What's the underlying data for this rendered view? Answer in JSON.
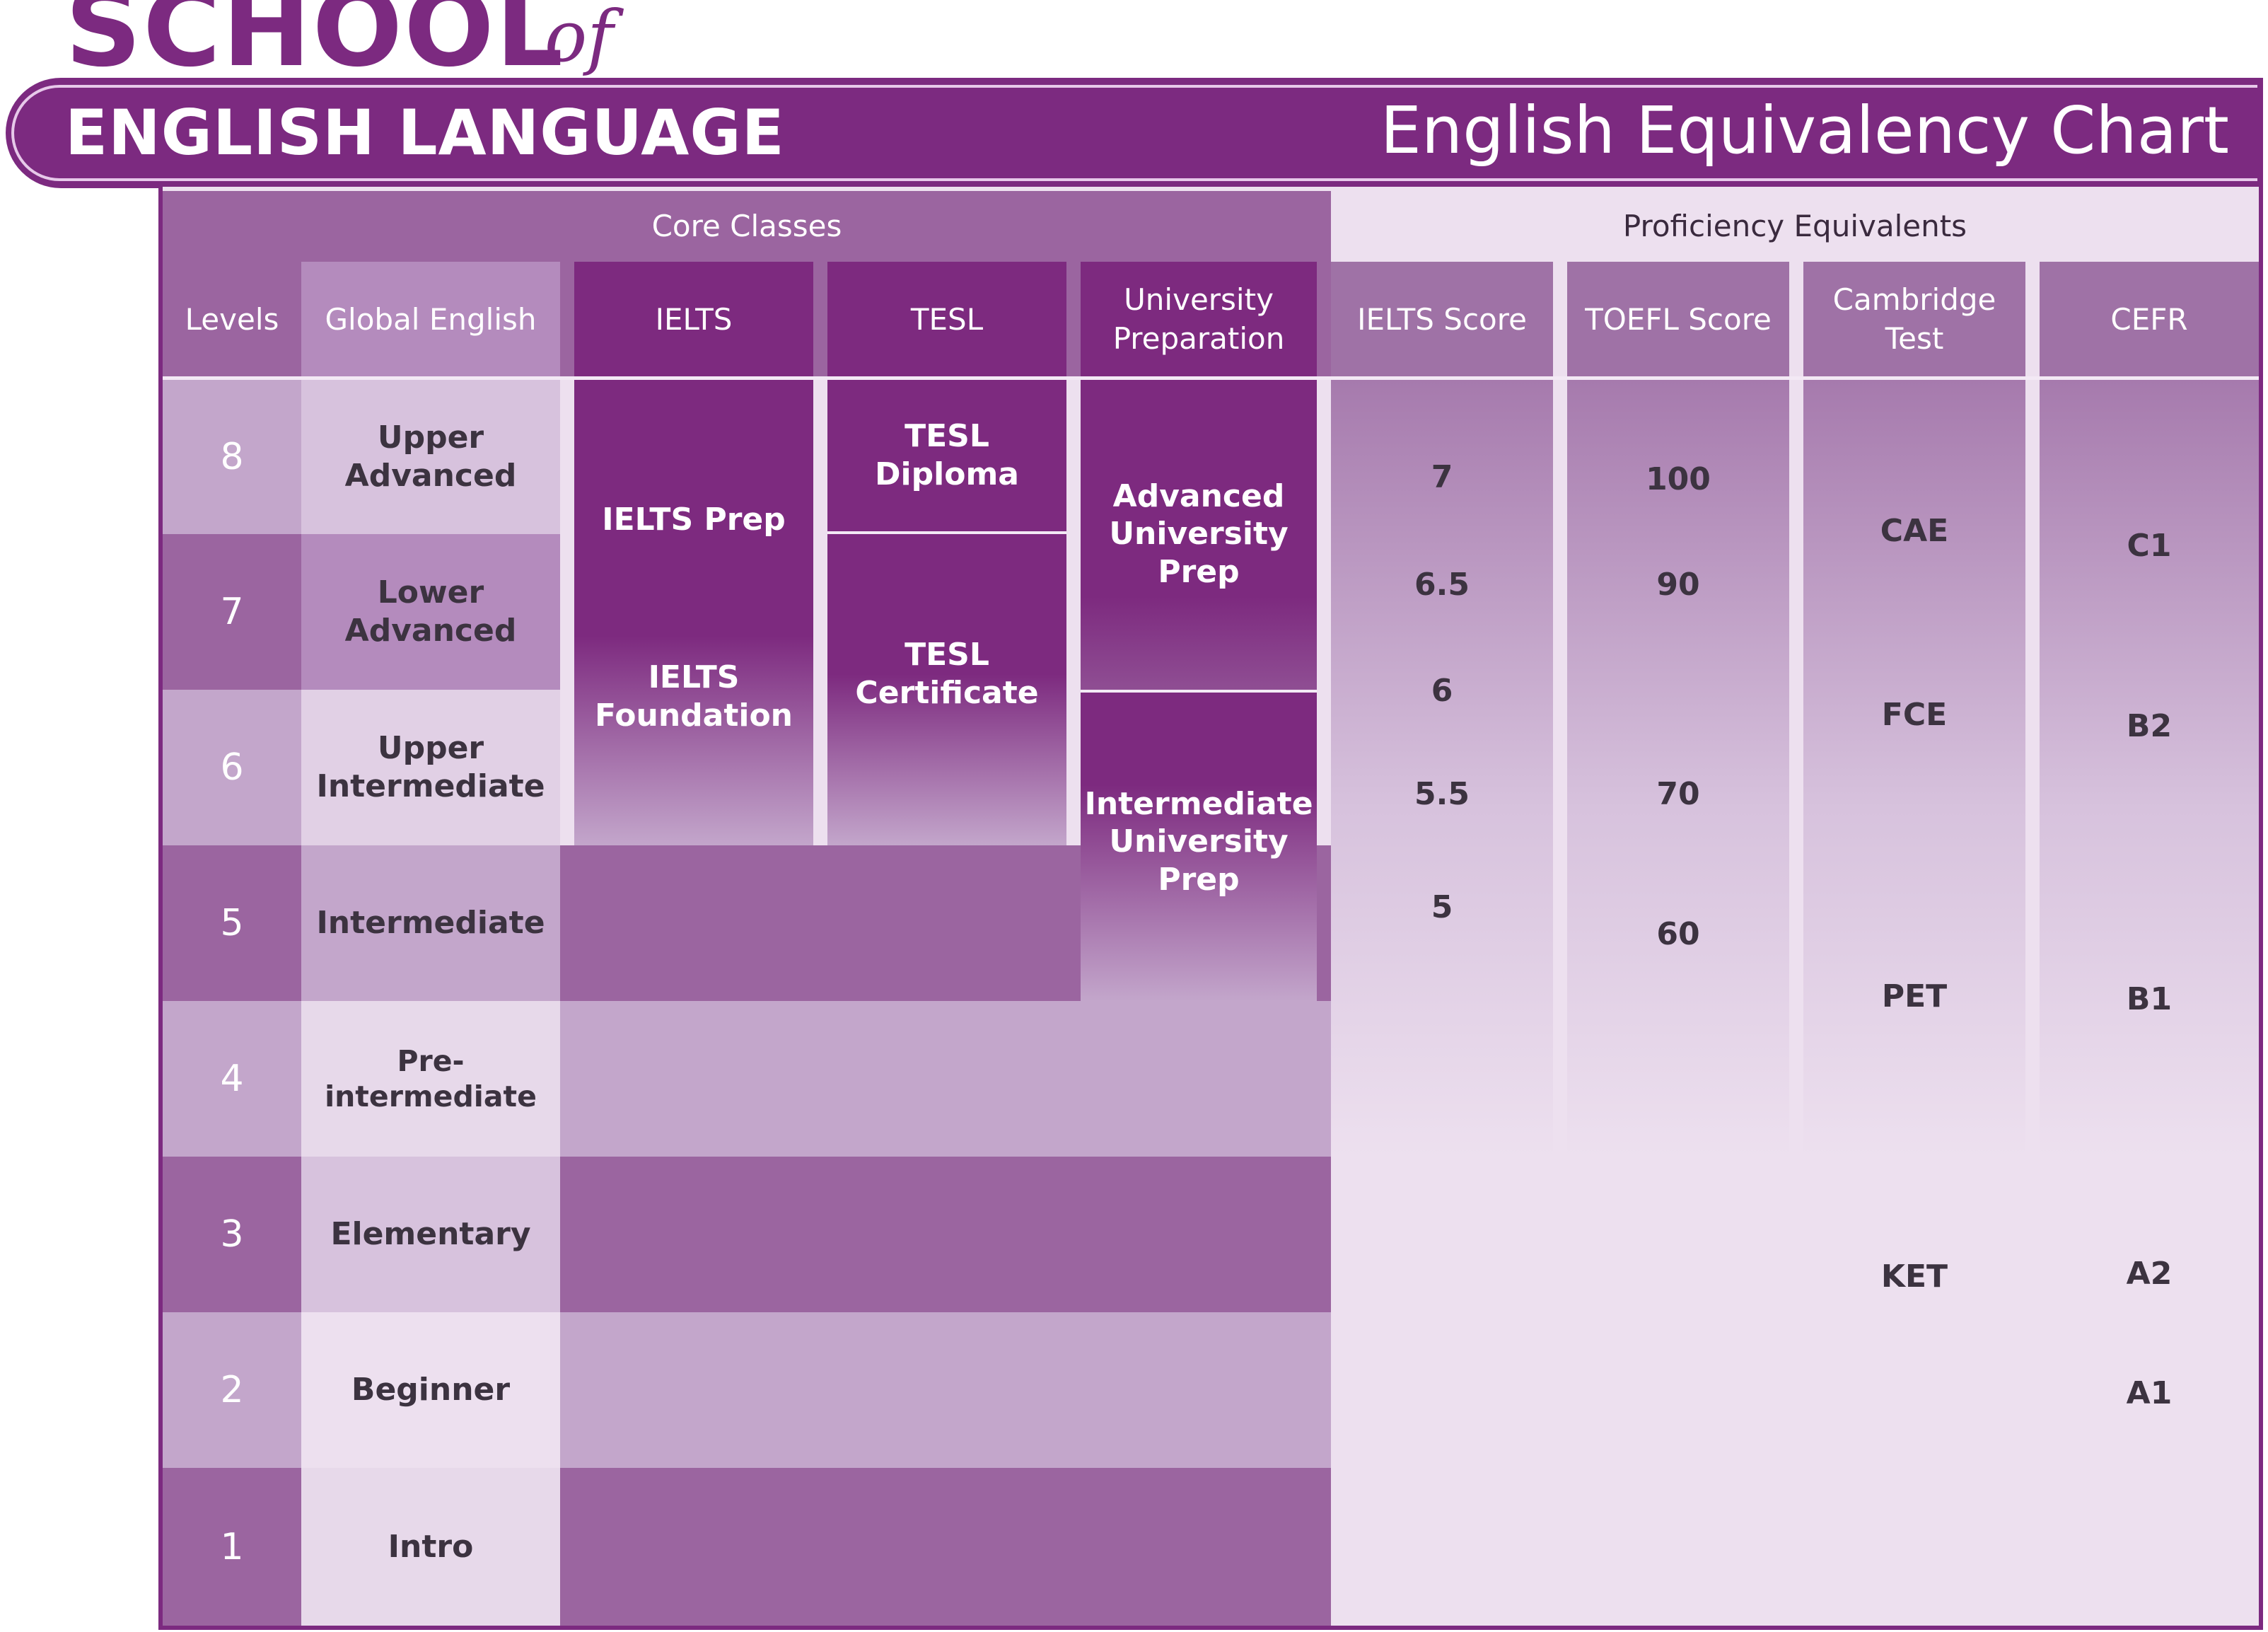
{
  "logo": {
    "school": "SCHOOL",
    "of": "of",
    "language": "ENGLISH LANGUAGE"
  },
  "title": "English Equivalency Chart",
  "groups": {
    "core": "Core Classes",
    "proficiency": "Proficiency Equivalents"
  },
  "columns": {
    "levels": "Levels",
    "global": "Global English",
    "ielts": "IELTS",
    "tesl": "TESL",
    "university": "University Preparation",
    "ielts_score": "IELTS Score",
    "toefl_score": "TOEFL Score",
    "cambridge": "Cambridge Test",
    "cefr": "CEFR"
  },
  "rows": [
    {
      "level": "8",
      "global": "Upper Advanced"
    },
    {
      "level": "7",
      "global": "Lower Advanced"
    },
    {
      "level": "6",
      "global": "Upper Intermediate"
    },
    {
      "level": "5",
      "global": "Intermediate"
    },
    {
      "level": "4",
      "global": "Pre-intermediate"
    },
    {
      "level": "3",
      "global": "Elementary"
    },
    {
      "level": "2",
      "global": "Beginner"
    },
    {
      "level": "1",
      "global": "Intro"
    }
  ],
  "courses": {
    "ielts_prep": "IELTS Prep",
    "ielts_foundation": "IELTS Foundation",
    "tesl_diploma": "TESL Diploma",
    "tesl_certificate": "TESL Certificate",
    "adv_uni_prep": "Advanced University Prep",
    "int_uni_prep": "Intermediate University Prep"
  },
  "ielts_scores": [
    "7",
    "6.5",
    "6",
    "5.5",
    "5"
  ],
  "toefl_scores": [
    "100",
    "90",
    "70",
    "60"
  ],
  "cambridge_tests": [
    "CAE",
    "FCE",
    "PET",
    "KET"
  ],
  "cefr_levels": [
    "C1",
    "B2",
    "B1",
    "A2",
    "A1"
  ],
  "colors": {
    "brand": "#7c2a80",
    "deep": "#7d2a7f",
    "mid": "#9b65a0",
    "light": "#c3a6cb",
    "pale": "#ede0ef"
  }
}
